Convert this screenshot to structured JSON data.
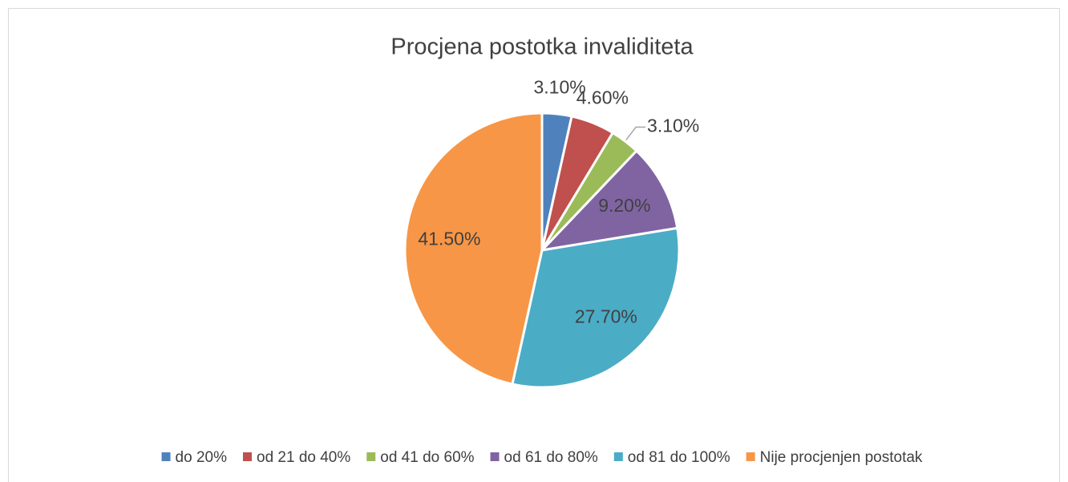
{
  "chart_data": {
    "type": "pie",
    "title": "Procjena postotka invaliditeta",
    "categories": [
      "do 20%",
      "od 21 do 40%",
      "od 41 do 60%",
      "od 61 do 80%",
      "od 81 do 100%",
      "Nije procjenjen postotak"
    ],
    "values": [
      3.1,
      4.6,
      3.1,
      9.2,
      27.7,
      41.5
    ],
    "value_labels": [
      "3.10%",
      "4.60%",
      "3.10%",
      "9.20%",
      "27.70%",
      "41.50%"
    ],
    "colors": [
      "#4f81bd",
      "#c0504d",
      "#9bbb59",
      "#8064a2",
      "#4bacc6",
      "#f79646"
    ],
    "legend": "bottom"
  }
}
